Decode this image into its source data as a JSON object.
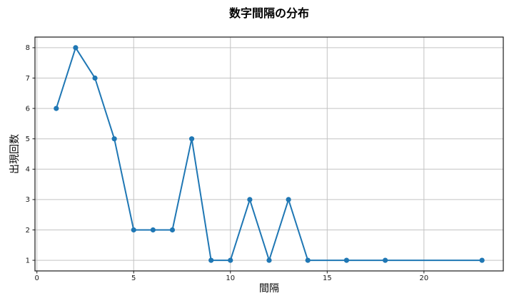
{
  "figure": {
    "title": "数字間隔の分布",
    "xlabel": "間隔",
    "ylabel": "出現回数"
  },
  "chart_data": {
    "type": "line",
    "title": "数字間隔の分布",
    "xlabel": "間隔",
    "ylabel": "出現回数",
    "x": [
      1,
      2,
      3,
      4,
      5,
      6,
      7,
      8,
      9,
      10,
      11,
      12,
      13,
      14,
      16,
      18,
      23
    ],
    "y": [
      6,
      8,
      7,
      5,
      2,
      2,
      2,
      5,
      1,
      1,
      3,
      1,
      3,
      1,
      1,
      1,
      1
    ],
    "xlim": [
      -0.1,
      24.1
    ],
    "ylim": [
      0.65,
      8.35
    ],
    "xticks": [
      0,
      5,
      10,
      15,
      20
    ],
    "yticks": [
      1,
      2,
      3,
      4,
      5,
      6,
      7,
      8
    ],
    "grid": true,
    "legend_position": "none",
    "marker": "circle",
    "colors": {
      "line": "#1f77b4",
      "marker": "#1f77b4",
      "grid": "#c3c3c3",
      "spine": "#1a1a1a",
      "tick_label": "#1a1a1a",
      "background": "#ffffff"
    }
  }
}
